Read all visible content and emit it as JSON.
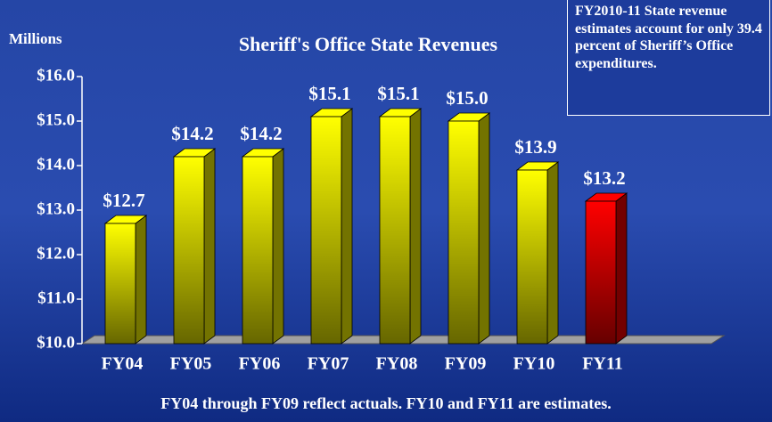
{
  "chart_data": {
    "type": "bar",
    "title": "Sheriff's Office State Revenues",
    "y_axis_label": "Millions",
    "annotation": "FY2010-11 State revenue estimates account for only 39.4 percent of Sheriff’s Office expenditures.",
    "footnote": "FY04 through FY09 reflect actuals.  FY10 and FY11 are estimates.",
    "categories": [
      "FY04",
      "FY05",
      "FY06",
      "FY07",
      "FY08",
      "FY09",
      "FY10",
      "FY11"
    ],
    "values": [
      12.7,
      14.2,
      14.2,
      15.1,
      15.1,
      15.0,
      13.9,
      13.2
    ],
    "value_labels": [
      "$12.7",
      "$14.2",
      "$14.2",
      "$15.1",
      "$15.1",
      "$15.0",
      "$13.9",
      "$13.2"
    ],
    "colors": [
      "#ffff00",
      "#ffff00",
      "#ffff00",
      "#ffff00",
      "#ffff00",
      "#ffff00",
      "#ffff00",
      "#ff0000"
    ],
    "ylim": [
      10,
      16
    ],
    "yticks": [
      {
        "value": 10,
        "label": "$10.0"
      },
      {
        "value": 11,
        "label": "$11.0"
      },
      {
        "value": 12,
        "label": "$12.0"
      },
      {
        "value": 13,
        "label": "$13.0"
      },
      {
        "value": 14,
        "label": "$14.0"
      },
      {
        "value": 15,
        "label": "$15.0"
      },
      {
        "value": 16,
        "label": "$16.0"
      }
    ]
  }
}
